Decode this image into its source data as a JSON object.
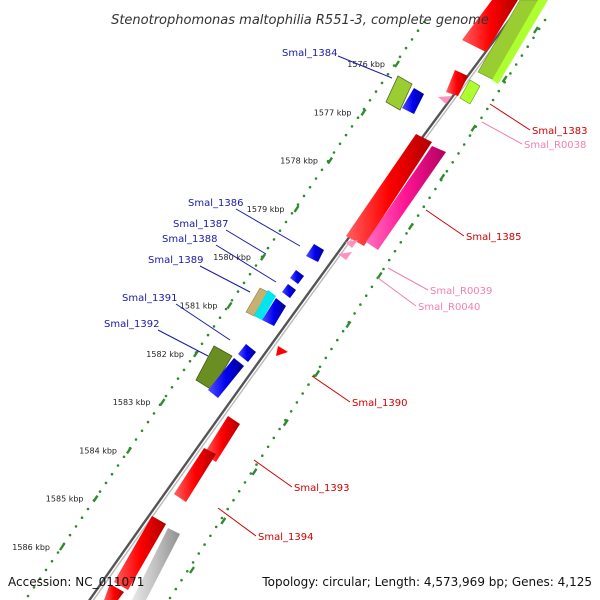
{
  "title": "Stenotrophomonas maltophilia R551-3, complete genome",
  "footer": {
    "accession": "Accession: NC_011071",
    "summary": "Topology: circular; Length: 4,573,969 bp; Genes: 4,125"
  },
  "kbp_ticks": [
    "1576 kbp",
    "1577 kbp",
    "1578 kbp",
    "1579 kbp",
    "1580 kbp",
    "1581 kbp",
    "1582 kbp",
    "1583 kbp",
    "1584 kbp",
    "1585 kbp",
    "1586 kbp"
  ],
  "gene_labels": {
    "left": [
      "Smal_1384",
      "Smal_1386",
      "Smal_1387",
      "Smal_1388",
      "Smal_1389",
      "Smal_1391",
      "Smal_1392"
    ],
    "right_red": [
      "Smal_1383",
      "Smal_1385",
      "Smal_1390",
      "Smal_1393",
      "Smal_1394"
    ],
    "right_pink": [
      "Smal_R0038",
      "Smal_R0039",
      "Smal_R0040"
    ]
  },
  "colors": {
    "label_blue": "#1a1aa6",
    "label_red": "#d00000",
    "label_pink": "#f080b0",
    "cds_red": "#ff0000",
    "cds_blue": "#0000ee",
    "cds_magenta": "#ff1493",
    "trna_pink": "#ff90c0",
    "green_dark": "#6b8e23",
    "green_light": "#9acd32",
    "green_bright": "#adff2f",
    "cyan": "#00e5ee",
    "tan": "#c8b070",
    "gray_track": "#bbbbbb",
    "backbone": "#666666",
    "tick_green": "#2e8b2e"
  }
}
